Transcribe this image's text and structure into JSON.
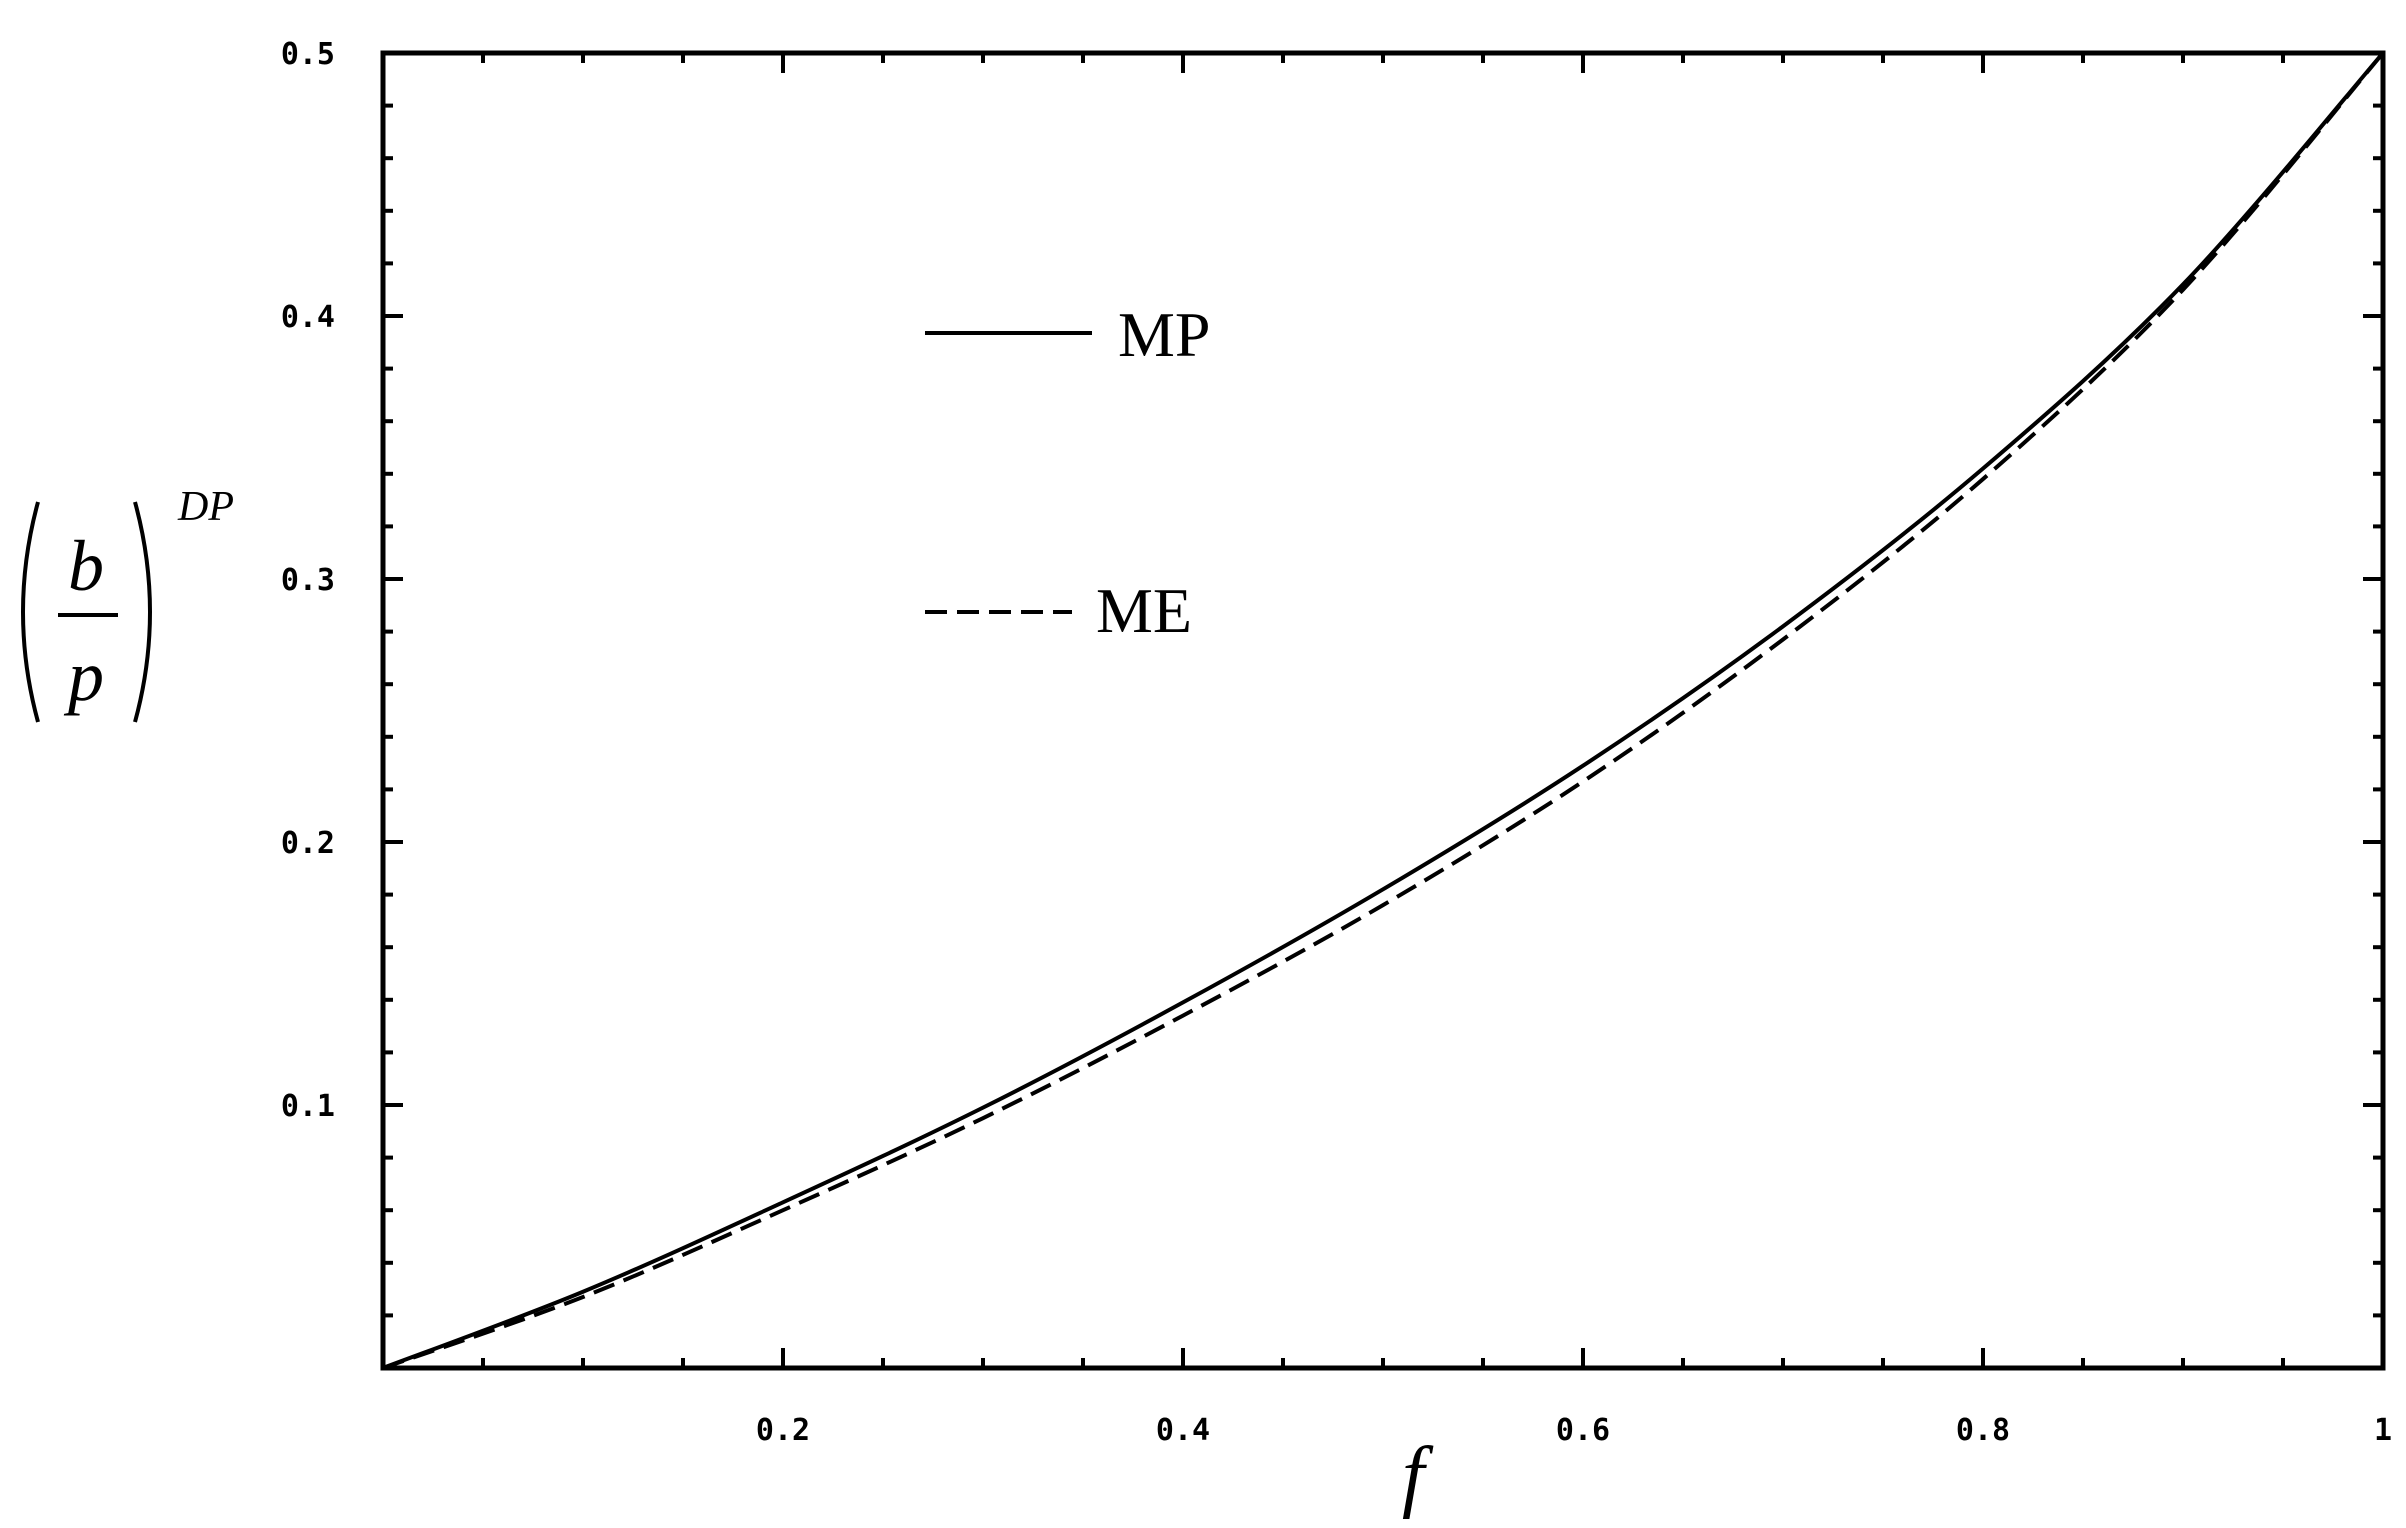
{
  "chart_data": {
    "type": "line",
    "title": "",
    "xlabel": "f",
    "ylabel": {
      "numerator": "b",
      "denominator": "p",
      "superscript": "DP"
    },
    "xlim": [
      0,
      1
    ],
    "ylim": [
      0,
      0.5
    ],
    "x_ticks": [
      0.2,
      0.4,
      0.6,
      0.8,
      1
    ],
    "x_tick_labels": [
      "0.2",
      "0.4",
      "0.6",
      "0.8",
      "1"
    ],
    "y_ticks": [
      0.1,
      0.2,
      0.3,
      0.4,
      0.5
    ],
    "y_tick_labels": [
      "0.1",
      "0.2",
      "0.3",
      "0.4",
      "0.5"
    ],
    "grid": false,
    "legend_position": "upper-left inside plot",
    "series": [
      {
        "name": "MP",
        "style": "solid",
        "x": [
          0,
          0.1,
          0.2,
          0.3,
          0.4,
          0.5,
          0.6,
          0.7,
          0.8,
          0.9,
          1.0
        ],
        "y": [
          0,
          0.029,
          0.063,
          0.099,
          0.139,
          0.182,
          0.229,
          0.282,
          0.342,
          0.412,
          0.5
        ]
      },
      {
        "name": "ME",
        "style": "dashed",
        "x": [
          0,
          0.1,
          0.2,
          0.3,
          0.4,
          0.5,
          0.6,
          0.7,
          0.8,
          0.9,
          1.0
        ],
        "y": [
          0,
          0.027,
          0.06,
          0.095,
          0.134,
          0.176,
          0.223,
          0.277,
          0.338,
          0.41,
          0.5
        ]
      }
    ]
  }
}
